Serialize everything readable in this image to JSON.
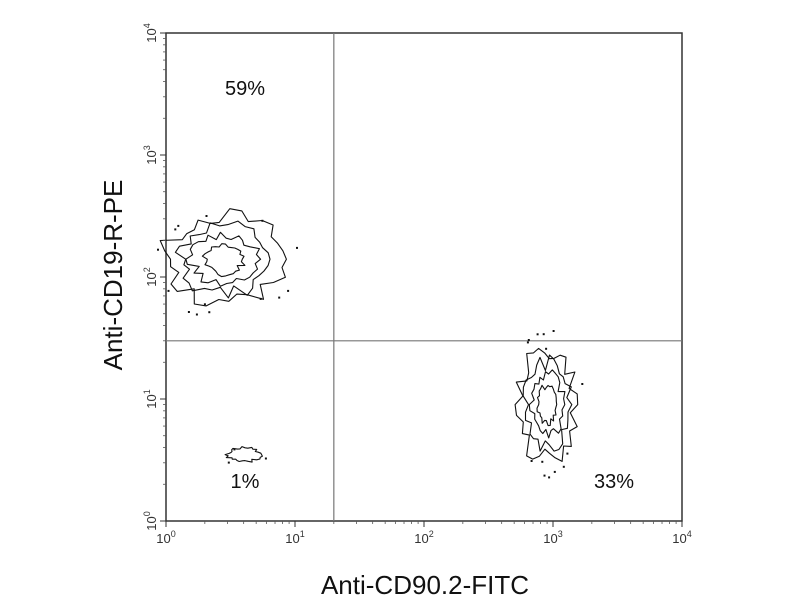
{
  "chart_data": {
    "type": "contour",
    "x_axis": {
      "label": "Anti-CD90.2-FITC",
      "scale": "log",
      "range": [
        1,
        10000
      ],
      "ticks": [
        {
          "base": "10",
          "exp": "0"
        },
        {
          "base": "10",
          "exp": "1"
        },
        {
          "base": "10",
          "exp": "2"
        },
        {
          "base": "10",
          "exp": "3"
        },
        {
          "base": "10",
          "exp": "4"
        }
      ]
    },
    "y_axis": {
      "label": "Anti-CD19-R-PE",
      "scale": "log",
      "range": [
        1,
        10000
      ],
      "ticks": [
        {
          "base": "10",
          "exp": "0"
        },
        {
          "base": "10",
          "exp": "1"
        },
        {
          "base": "10",
          "exp": "2"
        },
        {
          "base": "10",
          "exp": "3"
        },
        {
          "base": "10",
          "exp": "4"
        }
      ]
    },
    "gates": {
      "x": 20,
      "y": 30
    },
    "quadrants": [
      {
        "position": "upper-left",
        "label": "59%",
        "value": 59
      },
      {
        "position": "upper-right",
        "label": "",
        "value": null
      },
      {
        "position": "lower-left",
        "label": "1%",
        "value": 1
      },
      {
        "position": "lower-right",
        "label": "33%",
        "value": 33
      }
    ],
    "populations": [
      {
        "quadrant": "upper-left",
        "center": {
          "x": 2.8,
          "y": 140
        },
        "extent_x": [
          1,
          12
        ],
        "extent_y": [
          50,
          320
        ],
        "contour_levels": 4
      },
      {
        "quadrant": "lower-right",
        "center": {
          "x": 900,
          "y": 9
        },
        "extent_x": [
          300,
          1500
        ],
        "extent_y": [
          2,
          25
        ],
        "contour_levels": 4
      },
      {
        "quadrant": "lower-left",
        "center": {
          "x": 4,
          "y": 3.5
        },
        "extent_x": [
          3,
          6
        ],
        "extent_y": [
          3,
          4
        ],
        "contour_levels": 1
      }
    ]
  }
}
